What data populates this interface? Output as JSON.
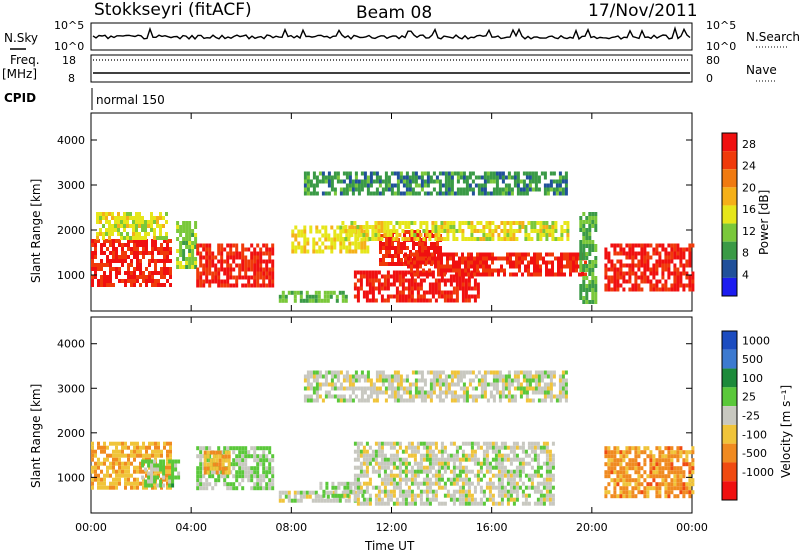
{
  "header": {
    "station": "Stokkseyri (fitACF)",
    "beam": "Beam 08",
    "date": "17/Nov/2011"
  },
  "noise_panel": {
    "left_label": "N.Sky",
    "left_ticks": [
      "10^5",
      "10^0"
    ],
    "right_ticks": [
      "10^5",
      "10^0"
    ],
    "right_label": "N.Search"
  },
  "freq_panel": {
    "left_label_1": "Freq.",
    "left_label_2": "[MHz]",
    "left_ticks": [
      "18",
      "8"
    ],
    "right_ticks": [
      "80",
      "0"
    ],
    "right_label": "Nave"
  },
  "cpid": {
    "label": "CPID",
    "value": "normal 150"
  },
  "colors": {
    "power_scale": [
      "#1c1cf0",
      "#20509a",
      "#3a9a46",
      "#7ac83a",
      "#e6e61a",
      "#f5b018",
      "#f07a10",
      "#f03a0a",
      "#f01010"
    ],
    "velocity_scale": [
      "#1c4cc0",
      "#3c7ad0",
      "#1c8a3a",
      "#5ac83a",
      "#c8c8c0",
      "#f0c43a",
      "#f08a20",
      "#f04a10",
      "#f01010"
    ],
    "ground_scatter": "#c0c0b8"
  },
  "chart_data": [
    {
      "type": "heatmap",
      "panel": "power",
      "xlabel": "Time UT",
      "ylabel": "Slant Range [km]",
      "x_tick_labels": [
        "00:00",
        "04:00",
        "08:00",
        "12:00",
        "16:00",
        "20:00",
        "00:00"
      ],
      "y_tick_labels": [
        "1000",
        "2000",
        "3000",
        "4000"
      ],
      "xlim_hours": [
        0,
        24
      ],
      "ylim_km": [
        200,
        4600
      ],
      "colorbar": {
        "label": "Power [dB]",
        "ticks": [
          "4",
          "8",
          "12",
          "16",
          "20",
          "24",
          "28"
        ],
        "range": [
          0,
          30
        ]
      },
      "regions": [
        {
          "t0": 0.0,
          "t1": 3.2,
          "r0": 750,
          "r1": 1800,
          "value": 27
        },
        {
          "t0": 0.2,
          "t1": 3.0,
          "r0": 1800,
          "r1": 2400,
          "value": 15
        },
        {
          "t0": 3.4,
          "t1": 4.2,
          "r0": 1200,
          "r1": 2200,
          "value": 12
        },
        {
          "t0": 4.2,
          "t1": 7.3,
          "r0": 750,
          "r1": 1700,
          "value": 27
        },
        {
          "t0": 7.5,
          "t1": 10.2,
          "r0": 450,
          "r1": 650,
          "value": 10
        },
        {
          "t0": 8.0,
          "t1": 11.0,
          "r0": 1500,
          "r1": 2100,
          "value": 16
        },
        {
          "t0": 10.5,
          "t1": 15.5,
          "r0": 450,
          "r1": 1100,
          "value": 28
        },
        {
          "t0": 11.5,
          "t1": 14.0,
          "r0": 1200,
          "r1": 2000,
          "value": 27
        },
        {
          "t0": 12.5,
          "t1": 19.8,
          "r0": 1000,
          "r1": 1500,
          "value": 27
        },
        {
          "t0": 10.0,
          "t1": 19.0,
          "r0": 1800,
          "r1": 2200,
          "value": 15
        },
        {
          "t0": 8.5,
          "t1": 19.0,
          "r0": 2800,
          "r1": 3300,
          "value": 8
        },
        {
          "t0": 19.5,
          "t1": 20.2,
          "r0": 400,
          "r1": 2400,
          "value": 10
        },
        {
          "t0": 20.5,
          "t1": 24.0,
          "r0": 700,
          "r1": 1700,
          "value": 27
        }
      ]
    },
    {
      "type": "heatmap",
      "panel": "velocity",
      "xlabel": "Time UT",
      "ylabel": "Slant Range [km]",
      "x_tick_labels": [
        "00:00",
        "04:00",
        "08:00",
        "12:00",
        "16:00",
        "20:00",
        "00:00"
      ],
      "y_tick_labels": [
        "1000",
        "2000",
        "3000",
        "4000"
      ],
      "xlim_hours": [
        0,
        24
      ],
      "ylim_km": [
        200,
        4600
      ],
      "colorbar": {
        "label": "Velocity [m s⁻¹]",
        "ticks": [
          "1000",
          "500",
          "100",
          "25",
          "-25",
          "-100",
          "-500",
          "-1000"
        ],
        "range": [
          -1200,
          1200
        ]
      },
      "regions": [
        {
          "t0": 0.0,
          "t1": 3.2,
          "r0": 750,
          "r1": 1800,
          "value": -350
        },
        {
          "t0": 2.0,
          "t1": 3.5,
          "r0": 800,
          "r1": 1400,
          "value": 200
        },
        {
          "t0": 4.2,
          "t1": 7.3,
          "r0": 750,
          "r1": 1700,
          "value": 150
        },
        {
          "t0": 4.5,
          "t1": 5.5,
          "r0": 1100,
          "r1": 1600,
          "value": -400
        },
        {
          "t0": 7.5,
          "t1": 10.5,
          "r0": 450,
          "r1": 700,
          "value": 0
        },
        {
          "t0": 9.0,
          "t1": 11.0,
          "r0": 600,
          "r1": 900,
          "value": 80
        },
        {
          "t0": 10.5,
          "t1": 18.5,
          "r0": 450,
          "r1": 1800,
          "value": 0
        },
        {
          "t0": 8.5,
          "t1": 19.0,
          "r0": 2700,
          "r1": 3400,
          "value": 0
        },
        {
          "t0": 20.5,
          "t1": 24.0,
          "r0": 600,
          "r1": 1700,
          "value": -500
        }
      ]
    }
  ]
}
